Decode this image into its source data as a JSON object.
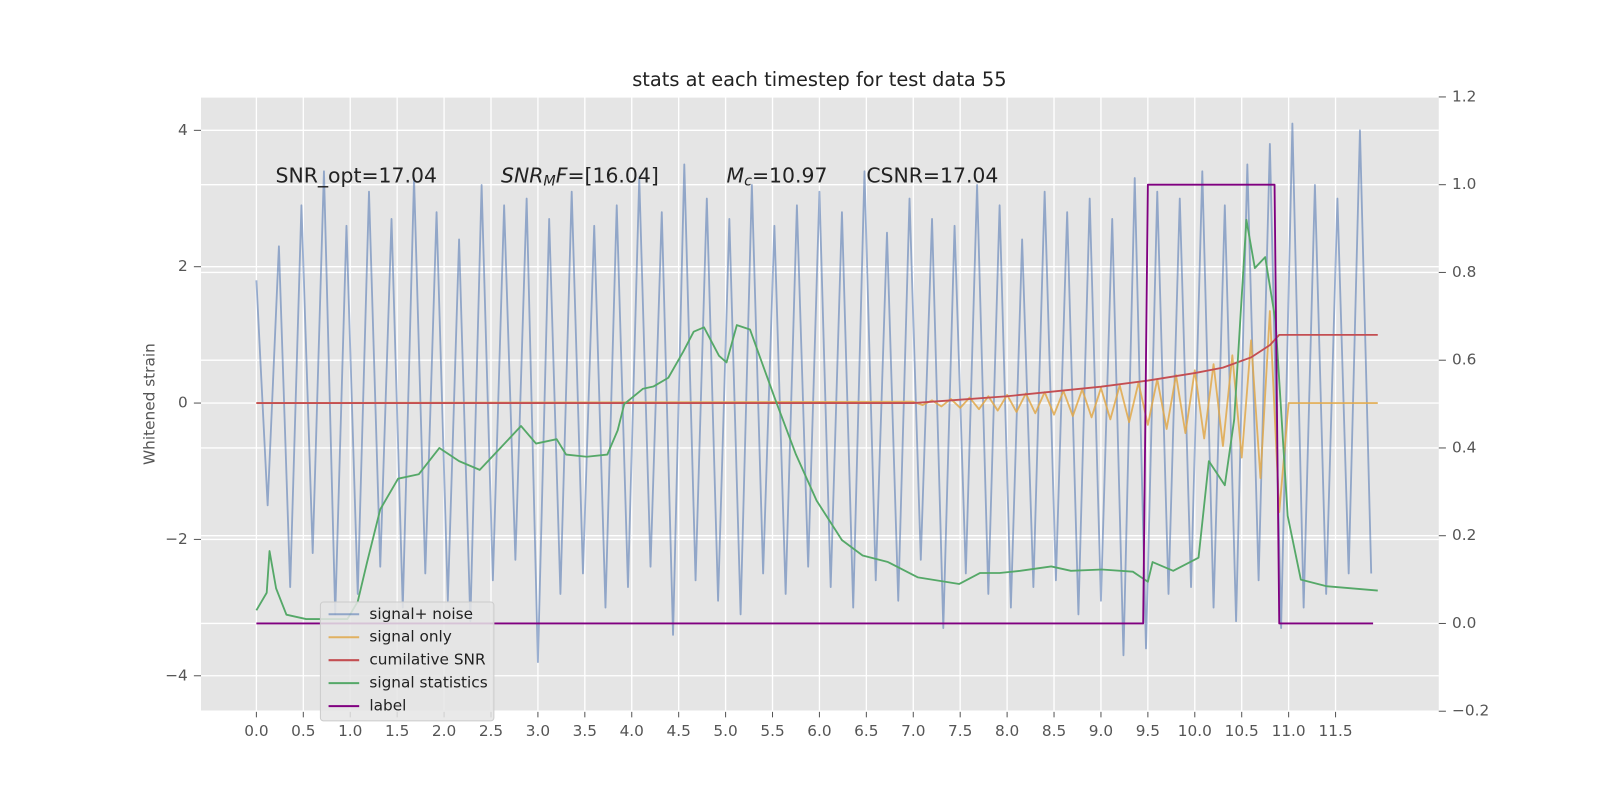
{
  "chart_data": {
    "type": "line",
    "title": "stats at each timestep for test data 55",
    "ylabel": "Whitened strain",
    "xlim": [
      -0.59,
      12.6
    ],
    "ylim": [
      -4.52,
      4.49
    ],
    "y2lim": [
      -0.2,
      1.2
    ],
    "xticks": [
      {
        "value": 0,
        "label": "0.0"
      },
      {
        "value": 0.5,
        "label": "0.5"
      },
      {
        "value": 1,
        "label": "1.0"
      },
      {
        "value": 1.5,
        "label": "1.5"
      },
      {
        "value": 2,
        "label": "2.0"
      },
      {
        "value": 2.5,
        "label": "2.5"
      },
      {
        "value": 3,
        "label": "3.0"
      },
      {
        "value": 3.5,
        "label": "3.5"
      },
      {
        "value": 4,
        "label": "4.0"
      },
      {
        "value": 4.5,
        "label": "4.5"
      },
      {
        "value": 5,
        "label": "5.0"
      },
      {
        "value": 5.5,
        "label": "5.5"
      },
      {
        "value": 6,
        "label": "6.0"
      },
      {
        "value": 6.5,
        "label": "6.5"
      },
      {
        "value": 7,
        "label": "7.0"
      },
      {
        "value": 7.5,
        "label": "7.5"
      },
      {
        "value": 8,
        "label": "8.0"
      },
      {
        "value": 8.5,
        "label": "8.5"
      },
      {
        "value": 9,
        "label": "9.0"
      },
      {
        "value": 9.5,
        "label": "9.5"
      },
      {
        "value": 10,
        "label": "10.0"
      },
      {
        "value": 10.5,
        "label": "10.5"
      },
      {
        "value": 11,
        "label": "11.0"
      },
      {
        "value": 11.5,
        "label": "11.5"
      }
    ],
    "yticks": [
      {
        "value": -4,
        "label": "−4"
      },
      {
        "value": -2,
        "label": "−2"
      },
      0,
      2,
      4
    ],
    "y2ticks": [
      {
        "value": -0.2,
        "label": "−0.2"
      },
      {
        "value": 0,
        "label": "0.0"
      },
      {
        "value": 0.2,
        "label": "0.2"
      },
      {
        "value": 0.4,
        "label": "0.4"
      },
      {
        "value": 0.6,
        "label": "0.6"
      },
      {
        "value": 0.8,
        "label": "0.8"
      },
      {
        "value": 1,
        "label": "1.0"
      },
      {
        "value": 1.2,
        "label": "1.2"
      }
    ],
    "grid": true,
    "legend": "lower left",
    "annotations": [
      [
        {
          "text": "SNR_opt=17.04"
        }
      ],
      [
        {
          "text": "SNR",
          "style": "italic"
        },
        {
          "text": "M",
          "style": "italic-sub"
        },
        {
          "text": "F",
          "style": "italic"
        },
        {
          "text": "=[16.04]"
        }
      ],
      [
        {
          "text": "M",
          "style": "italic"
        },
        {
          "text": "c",
          "style": "italic-sub"
        },
        {
          "text": "=10.97"
        }
      ],
      [
        {
          "text": "CSNR=17.04"
        }
      ]
    ],
    "series": [
      {
        "name": "signal+ noise",
        "color": "#4c72b0",
        "opacity": 0.55,
        "x": [
          0,
          0.12,
          0.24,
          0.36,
          0.48,
          0.6,
          0.72,
          0.84,
          0.96,
          1.08,
          1.2,
          1.32,
          1.44,
          1.56,
          1.68,
          1.8,
          1.92,
          2.04,
          2.16,
          2.28,
          2.4,
          2.52,
          2.64,
          2.76,
          2.88,
          3,
          3.12,
          3.24,
          3.36,
          3.48,
          3.6,
          3.72,
          3.84,
          3.96,
          4.08,
          4.2,
          4.32,
          4.44,
          4.56,
          4.68,
          4.8,
          4.92,
          5.04,
          5.16,
          5.28,
          5.4,
          5.52,
          5.64,
          5.76,
          5.88,
          6,
          6.12,
          6.24,
          6.36,
          6.48,
          6.6,
          6.72,
          6.84,
          6.96,
          7.08,
          7.2,
          7.32,
          7.44,
          7.56,
          7.68,
          7.8,
          7.92,
          8.04,
          8.16,
          8.28,
          8.4,
          8.52,
          8.64,
          8.76,
          8.88,
          9,
          9.12,
          9.24,
          9.36,
          9.48,
          9.6,
          9.72,
          9.84,
          9.96,
          10.08,
          10.2,
          10.32,
          10.44,
          10.56,
          10.68,
          10.8,
          10.92,
          11.04,
          11.16,
          11.28,
          11.4,
          11.52,
          11.64,
          11.76,
          11.88
        ],
        "values": [
          1.8,
          -1.5,
          2.3,
          -2.7,
          2.9,
          -2.2,
          3.4,
          -3.1,
          2.6,
          -2.8,
          3.1,
          -2.4,
          2.7,
          -3.0,
          3.3,
          -2.5,
          2.8,
          -2.9,
          2.4,
          -3.2,
          3.2,
          -2.6,
          2.9,
          -2.3,
          3.0,
          -3.8,
          2.7,
          -2.8,
          3.1,
          -2.5,
          2.6,
          -3.0,
          2.9,
          -2.7,
          3.3,
          -2.4,
          2.8,
          -3.4,
          3.5,
          -2.6,
          3.0,
          -2.9,
          2.7,
          -3.1,
          3.2,
          -2.5,
          2.6,
          -2.8,
          2.9,
          -2.4,
          3.1,
          -2.7,
          2.8,
          -3.0,
          3.4,
          -2.6,
          2.5,
          -2.9,
          3.0,
          -2.3,
          2.7,
          -3.3,
          2.6,
          -2.5,
          3.2,
          -2.8,
          2.9,
          -3.0,
          2.4,
          -2.7,
          3.1,
          -2.6,
          2.8,
          -3.1,
          3.0,
          -2.9,
          2.7,
          -3.7,
          3.3,
          -3.6,
          3.1,
          -2.8,
          3.0,
          -2.7,
          3.4,
          -3.0,
          2.9,
          -3.2,
          3.5,
          -2.6,
          3.8,
          -3.3,
          4.1,
          -3.0,
          3.2,
          -2.8,
          3.0,
          -2.5,
          4.0,
          -2.5
        ]
      },
      {
        "name": "signal only",
        "color": "#e0a84a",
        "opacity": 0.85,
        "x": [
          0,
          7,
          7.1,
          7.2,
          7.3,
          7.4,
          7.5,
          7.6,
          7.7,
          7.8,
          7.9,
          8,
          8.1,
          8.2,
          8.3,
          8.4,
          8.5,
          8.6,
          8.7,
          8.8,
          8.9,
          9,
          9.1,
          9.2,
          9.3,
          9.4,
          9.5,
          9.6,
          9.7,
          9.8,
          9.9,
          10,
          10.1,
          10.2,
          10.3,
          10.4,
          10.5,
          10.6,
          10.7,
          10.8,
          10.9,
          11,
          11.95
        ],
        "values": [
          0,
          0.02,
          -0.03,
          0.04,
          -0.05,
          0.06,
          -0.07,
          0.08,
          -0.09,
          0.1,
          -0.11,
          0.12,
          -0.13,
          0.14,
          -0.15,
          0.16,
          -0.17,
          0.18,
          -0.19,
          0.2,
          -0.21,
          0.22,
          -0.24,
          0.26,
          -0.28,
          0.3,
          -0.32,
          0.35,
          -0.38,
          0.41,
          -0.44,
          0.48,
          -0.52,
          0.57,
          -0.63,
          0.7,
          -0.8,
          0.92,
          -1.1,
          1.35,
          -1.6,
          0,
          0
        ]
      },
      {
        "name": "cumilative SNR",
        "color": "#c44e52",
        "opacity": 1,
        "x": [
          0,
          6,
          7,
          7.5,
          8,
          8.5,
          9,
          9.5,
          10,
          10.3,
          10.6,
          10.8,
          10.9,
          11.95
        ],
        "values": [
          0,
          0,
          0,
          0.05,
          0.1,
          0.17,
          0.24,
          0.33,
          0.44,
          0.52,
          0.67,
          0.85,
          1,
          1
        ]
      },
      {
        "name": "signal statistics",
        "color": "#55a868",
        "opacity": 1,
        "axis": "y2",
        "x": [
          0,
          0.11,
          0.14,
          0.21,
          0.32,
          0.53,
          0.97,
          1.08,
          1.18,
          1.32,
          1.51,
          1.73,
          1.95,
          2.16,
          2.38,
          2.6,
          2.82,
          2.98,
          3.2,
          3.3,
          3.52,
          3.74,
          3.85,
          3.92,
          4.12,
          4.23,
          4.39,
          4.55,
          4.66,
          4.77,
          4.93,
          5.01,
          5.12,
          5.26,
          5.53,
          5.75,
          5.97,
          6.24,
          6.46,
          6.73,
          7.05,
          7.49,
          7.71,
          7.92,
          8.14,
          8.47,
          8.68,
          9.01,
          9.34,
          9.5,
          9.55,
          9.77,
          10.04,
          10.15,
          10.32,
          10.42,
          10.55,
          10.64,
          10.75,
          10.86,
          10.99,
          11.13,
          11.4,
          11.95
        ],
        "values": [
          0.03,
          0.07,
          0.165,
          0.08,
          0.02,
          0.01,
          0.01,
          0.05,
          0.14,
          0.26,
          0.33,
          0.34,
          0.4,
          0.37,
          0.35,
          0.4,
          0.45,
          0.41,
          0.42,
          0.385,
          0.38,
          0.385,
          0.44,
          0.5,
          0.535,
          0.54,
          0.56,
          0.62,
          0.665,
          0.675,
          0.61,
          0.595,
          0.68,
          0.67,
          0.51,
          0.385,
          0.28,
          0.19,
          0.155,
          0.14,
          0.105,
          0.09,
          0.115,
          0.115,
          0.12,
          0.13,
          0.12,
          0.123,
          0.118,
          0.095,
          0.14,
          0.12,
          0.15,
          0.37,
          0.315,
          0.465,
          0.92,
          0.81,
          0.835,
          0.69,
          0.245,
          0.1,
          0.085,
          0.075
        ]
      },
      {
        "name": "label",
        "color": "#800080",
        "opacity": 1,
        "axis": "y2",
        "x": [
          0,
          9.45,
          9.5,
          10.85,
          10.9,
          11.9
        ],
        "values": [
          0,
          0,
          1,
          1,
          0,
          0
        ]
      }
    ]
  }
}
